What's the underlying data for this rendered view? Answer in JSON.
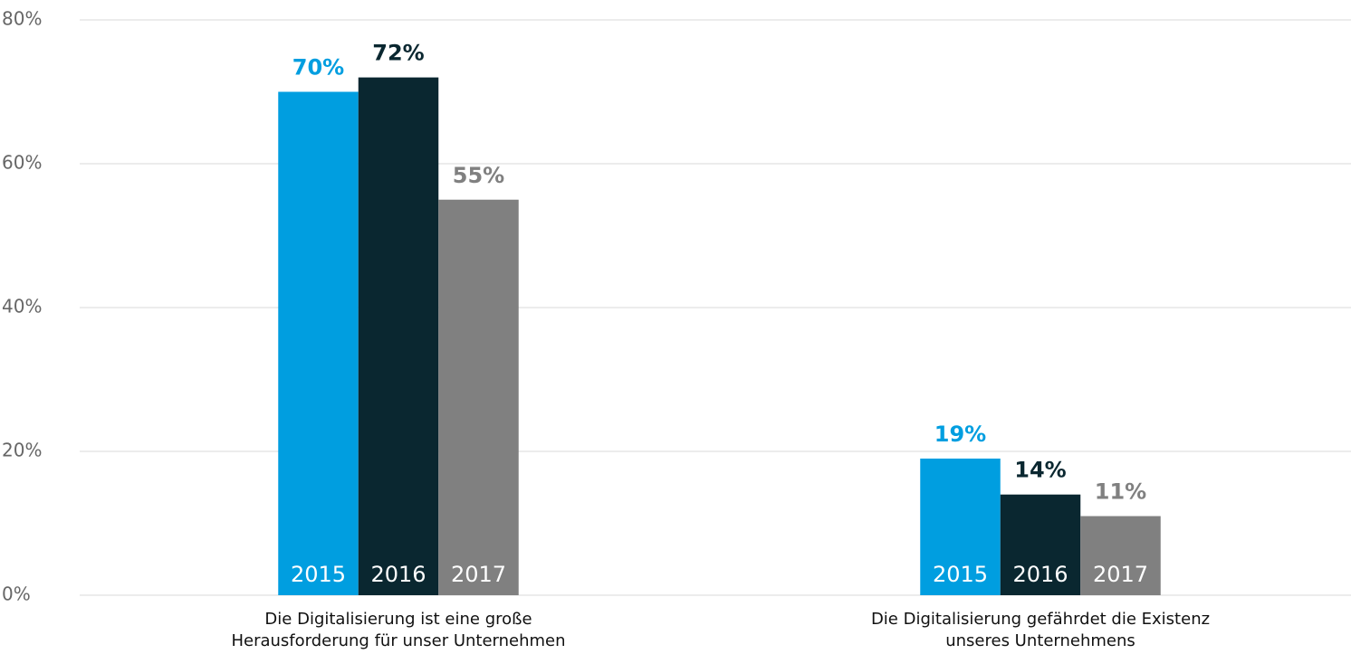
{
  "chart_data": {
    "type": "bar",
    "categories": [
      "Die Digitalisierung ist eine große Herausforderung für unser Unternehmen",
      "Die Digitalisierung gefährdet die Existenz unseres Unternehmens"
    ],
    "series": [
      {
        "name": "2015",
        "color": "#009ee0",
        "values": [
          70,
          19
        ],
        "value_labels": [
          "70%",
          "19%"
        ]
      },
      {
        "name": "2016",
        "color": "#0a2730",
        "values": [
          72,
          14
        ],
        "value_labels": [
          "72%",
          "14%"
        ]
      },
      {
        "name": "2017",
        "color": "#808080",
        "values": [
          55,
          11
        ],
        "value_labels": [
          "55%",
          "11%"
        ]
      }
    ],
    "ylim": [
      0,
      80
    ],
    "yticks": [
      {
        "value": 0,
        "label": "0%"
      },
      {
        "value": 20,
        "label": "20%"
      },
      {
        "value": 40,
        "label": "40%"
      },
      {
        "value": 60,
        "label": "60%"
      },
      {
        "value": 80,
        "label": "80%"
      }
    ],
    "grid": true
  }
}
